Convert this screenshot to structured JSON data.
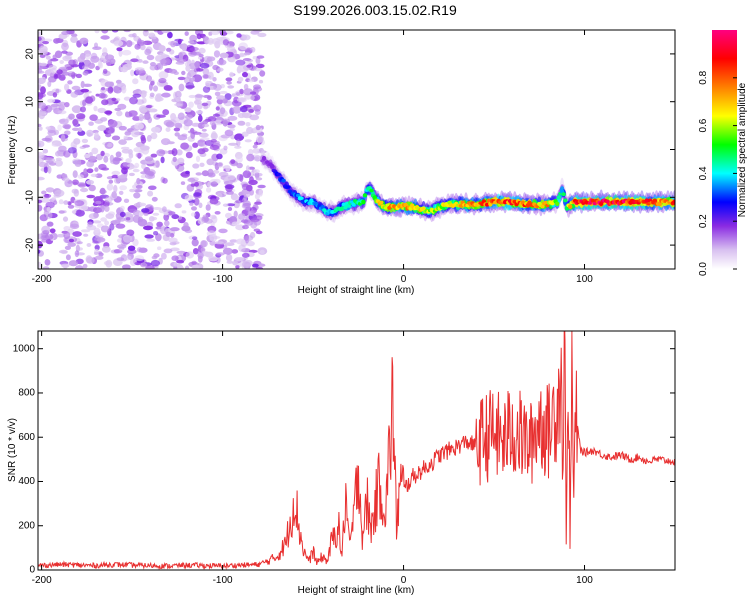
{
  "page_title": "S199.2026.003.15.02.R19",
  "chart_data": [
    {
      "type": "heatmap",
      "panel": "spectrogram",
      "xlabel": "Height of straight line (km)",
      "ylabel": "Frequency (Hz)",
      "xlim": [
        -202,
        150
      ],
      "ylim": [
        -25,
        25
      ],
      "xticks": [
        -200,
        -100,
        0,
        100
      ],
      "xtick_labels": [
        "-200",
        "-100",
        "0",
        "100"
      ],
      "yticks": [
        20,
        10,
        0,
        -10,
        -20
      ],
      "ytick_labels": [
        "20",
        "10",
        "0",
        "-10",
        "-20"
      ],
      "colorbar": {
        "label": "Normalized spectral amplitude",
        "range": [
          0,
          1
        ],
        "ticks": [
          0.0,
          0.2,
          0.4,
          0.6,
          0.8
        ],
        "tick_labels": [
          "0.0",
          "0.2",
          "0.4",
          "0.6",
          "0.8"
        ],
        "colors": [
          "#ffffff",
          "#d8c0f0",
          "#8a2be2",
          "#0000ff",
          "#00ffff",
          "#00ff00",
          "#ffff00",
          "#ff8000",
          "#ff0000",
          "#ff0080"
        ]
      },
      "noise_region": {
        "x": [
          -202,
          -78
        ],
        "y": [
          -25,
          25
        ]
      },
      "ridge": {
        "x": [
          -78,
          -74,
          -70,
          -66,
          -62,
          -58,
          -54,
          -50,
          -46,
          -42,
          -38,
          -34,
          -30,
          -26,
          -22,
          -20,
          -18,
          -14,
          -10,
          -6,
          -2,
          0,
          5,
          10,
          15,
          20,
          25,
          30,
          40,
          50,
          60,
          70,
          80,
          85,
          88,
          90,
          95,
          100,
          110,
          120,
          130,
          140,
          150
        ],
        "y": [
          -2,
          -3,
          -5,
          -7,
          -9,
          -10,
          -11,
          -11,
          -12,
          -13,
          -13,
          -12,
          -11.5,
          -11,
          -11,
          -8,
          -8.5,
          -11,
          -12,
          -12,
          -12,
          -12,
          -12,
          -12.5,
          -13,
          -12,
          -11.5,
          -11.5,
          -11.5,
          -11,
          -11,
          -11.5,
          -11.5,
          -11,
          -8,
          -12,
          -11,
          -11,
          -11,
          -11,
          -11,
          -11,
          -11
        ],
        "amplitude": [
          0.15,
          0.2,
          0.25,
          0.3,
          0.3,
          0.35,
          0.35,
          0.35,
          0.35,
          0.4,
          0.4,
          0.4,
          0.45,
          0.45,
          0.5,
          0.45,
          0.5,
          0.6,
          0.7,
          0.7,
          0.75,
          0.75,
          0.7,
          0.65,
          0.6,
          0.6,
          0.65,
          0.7,
          0.75,
          0.8,
          0.8,
          0.75,
          0.7,
          0.5,
          0.4,
          0.55,
          0.85,
          0.9,
          0.9,
          0.9,
          0.85,
          0.8,
          0.8
        ]
      }
    },
    {
      "type": "line",
      "panel": "snr",
      "xlabel": "Height of straight line (km)",
      "ylabel": "SNR (10 * v/v)",
      "xlim": [
        -202,
        150
      ],
      "ylim": [
        0,
        1080
      ],
      "xticks": [
        -200,
        -100,
        0,
        100
      ],
      "xtick_labels": [
        "-200",
        "-100",
        "0",
        "100"
      ],
      "yticks": [
        0,
        200,
        400,
        600,
        800,
        1000
      ],
      "ytick_labels": [
        "0",
        "200",
        "400",
        "600",
        "800",
        "1000"
      ],
      "color": "#e83030",
      "series": [
        {
          "x": [
            -202,
            -190,
            -180,
            -170,
            -160,
            -150,
            -140,
            -130,
            -120,
            -110,
            -100,
            -90,
            -80,
            -75,
            -70,
            -65,
            -60,
            -58,
            -55,
            -52,
            -50,
            -48,
            -45,
            -42,
            -40,
            -36,
            -34,
            -32,
            -30,
            -27,
            -25,
            -23,
            -20,
            -18,
            -15,
            -13,
            -10,
            -8,
            -6,
            -4,
            -2,
            0,
            5,
            10,
            15,
            20,
            25,
            30,
            35,
            40,
            45,
            50,
            55,
            60,
            65,
            70,
            75,
            80,
            85,
            87,
            88,
            89,
            90,
            91,
            92,
            93,
            94,
            95,
            98,
            100,
            105,
            110,
            115,
            120,
            125,
            130,
            135,
            140,
            145,
            150
          ],
          "y": [
            20,
            25,
            22,
            20,
            25,
            22,
            20,
            18,
            22,
            20,
            18,
            22,
            25,
            40,
            60,
            120,
            340,
            200,
            80,
            40,
            90,
            30,
            60,
            40,
            120,
            200,
            60,
            350,
            100,
            260,
            520,
            150,
            300,
            180,
            320,
            400,
            260,
            500,
            780,
            200,
            380,
            360,
            420,
            450,
            480,
            520,
            540,
            560,
            580,
            560,
            600,
            620,
            580,
            640,
            600,
            560,
            680,
            620,
            760,
            900,
            500,
            1000,
            80,
            1060,
            100,
            920,
            300,
            700,
            540,
            530,
            540,
            520,
            510,
            520,
            500,
            510,
            490,
            500,
            495,
            490
          ]
        }
      ]
    }
  ]
}
